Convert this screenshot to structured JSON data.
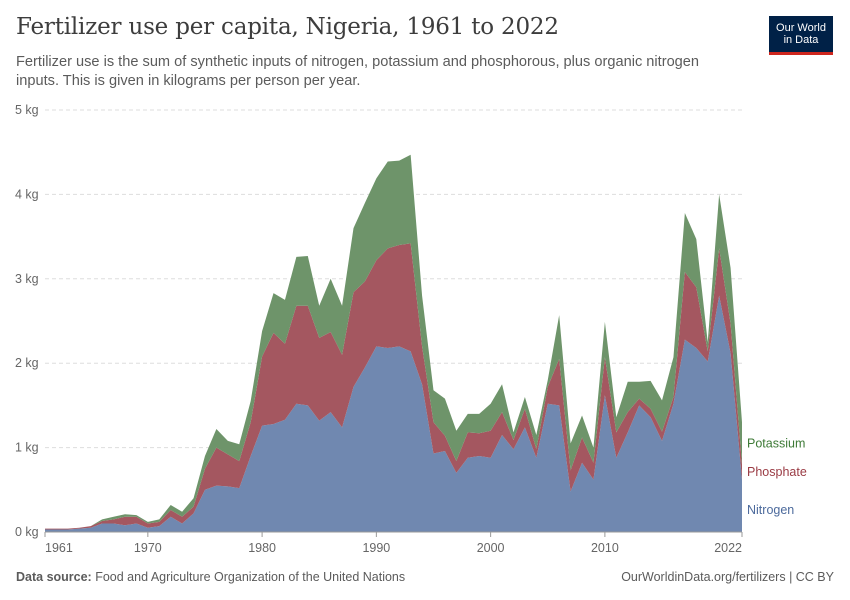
{
  "header": {
    "title": "Fertilizer use per capita, Nigeria, 1961 to 2022",
    "subtitle": "Fertilizer use is the sum of synthetic inputs of nitrogen, potassium and phosphorous, plus organic nitrogen inputs. This is given in kilograms per person per year."
  },
  "logo": {
    "line1": "Our World",
    "line2": "in Data"
  },
  "footer": {
    "source_label": "Data source:",
    "source_text": "Food and Agriculture Organization of the United Nations",
    "credit": "OurWorldinData.org/fertilizers | CC BY"
  },
  "colors": {
    "nitrogen": "#7088b0",
    "phosphate": "#a45760",
    "potassium": "#6e946a",
    "nitrogen_label": "#4c6a9c",
    "phosphate_label": "#9a3b44",
    "potassium_label": "#3d7a36",
    "grid": "#dddddd"
  },
  "chart_data": {
    "type": "area",
    "stacked": true,
    "x": [
      1961,
      1962,
      1963,
      1964,
      1965,
      1966,
      1967,
      1968,
      1969,
      1970,
      1971,
      1972,
      1973,
      1974,
      1975,
      1976,
      1977,
      1978,
      1979,
      1980,
      1981,
      1982,
      1983,
      1984,
      1985,
      1986,
      1987,
      1988,
      1989,
      1990,
      1991,
      1992,
      1993,
      1994,
      1995,
      1996,
      1997,
      1998,
      1999,
      2000,
      2001,
      2002,
      2003,
      2004,
      2005,
      2006,
      2007,
      2008,
      2009,
      2010,
      2011,
      2012,
      2013,
      2014,
      2015,
      2016,
      2017,
      2018,
      2019,
      2020,
      2021,
      2022
    ],
    "series": [
      {
        "name": "Nitrogen",
        "values": [
          0.03,
          0.03,
          0.03,
          0.04,
          0.05,
          0.1,
          0.1,
          0.08,
          0.1,
          0.05,
          0.07,
          0.18,
          0.1,
          0.22,
          0.5,
          0.55,
          0.54,
          0.52,
          0.9,
          1.26,
          1.28,
          1.33,
          1.52,
          1.5,
          1.32,
          1.42,
          1.24,
          1.72,
          1.95,
          2.2,
          2.18,
          2.2,
          2.14,
          1.75,
          0.93,
          0.96,
          0.7,
          0.88,
          0.9,
          0.88,
          1.15,
          0.98,
          1.24,
          0.88,
          1.52,
          1.5,
          0.48,
          0.82,
          0.62,
          1.62,
          0.88,
          1.18,
          1.5,
          1.36,
          1.08,
          1.52,
          2.28,
          2.18,
          2.02,
          2.8,
          2.12,
          0.62
        ]
      },
      {
        "name": "Phosphate",
        "values": [
          0.01,
          0.01,
          0.01,
          0.01,
          0.02,
          0.03,
          0.05,
          0.1,
          0.08,
          0.05,
          0.05,
          0.08,
          0.08,
          0.08,
          0.25,
          0.45,
          0.38,
          0.32,
          0.4,
          0.82,
          1.08,
          0.9,
          1.16,
          1.18,
          0.98,
          0.95,
          0.86,
          1.12,
          1.02,
          1.02,
          1.18,
          1.2,
          1.28,
          0.45,
          0.37,
          0.18,
          0.14,
          0.3,
          0.27,
          0.32,
          0.27,
          0.11,
          0.22,
          0.1,
          0.2,
          0.55,
          0.25,
          0.3,
          0.2,
          0.45,
          0.3,
          0.24,
          0.08,
          0.1,
          0.11,
          0.08,
          0.8,
          0.72,
          0.12,
          0.56,
          0.35,
          0.18
        ]
      },
      {
        "name": "Potassium",
        "values": [
          0.0,
          0.0,
          0.0,
          0.0,
          0.0,
          0.02,
          0.03,
          0.03,
          0.02,
          0.02,
          0.03,
          0.06,
          0.06,
          0.1,
          0.15,
          0.22,
          0.16,
          0.2,
          0.25,
          0.3,
          0.47,
          0.52,
          0.58,
          0.59,
          0.38,
          0.63,
          0.58,
          0.76,
          0.93,
          0.97,
          1.03,
          1.0,
          1.05,
          0.6,
          0.38,
          0.44,
          0.36,
          0.22,
          0.23,
          0.32,
          0.33,
          0.09,
          0.14,
          0.17,
          0.08,
          0.52,
          0.32,
          0.26,
          0.18,
          0.42,
          0.18,
          0.36,
          0.2,
          0.33,
          0.37,
          0.47,
          0.7,
          0.57,
          0.11,
          0.64,
          0.66,
          0.5
        ]
      }
    ],
    "title": "Fertilizer use per capita, Nigeria, 1961 to 2022",
    "xlabel": "",
    "ylabel": "",
    "xlim": [
      1961,
      2022
    ],
    "ylim": [
      0,
      5
    ],
    "y_ticks": [
      0,
      1,
      2,
      3,
      4,
      5
    ],
    "y_tick_labels": [
      "0 kg",
      "1 kg",
      "2 kg",
      "3 kg",
      "4 kg",
      "5 kg"
    ],
    "x_ticks": [
      1961,
      1970,
      1980,
      1990,
      2000,
      2010,
      2022
    ],
    "x_tick_labels": [
      "1961",
      "1970",
      "1980",
      "1990",
      "2000",
      "2010",
      "2022"
    ],
    "grid": true,
    "legend": "right-end labels"
  }
}
